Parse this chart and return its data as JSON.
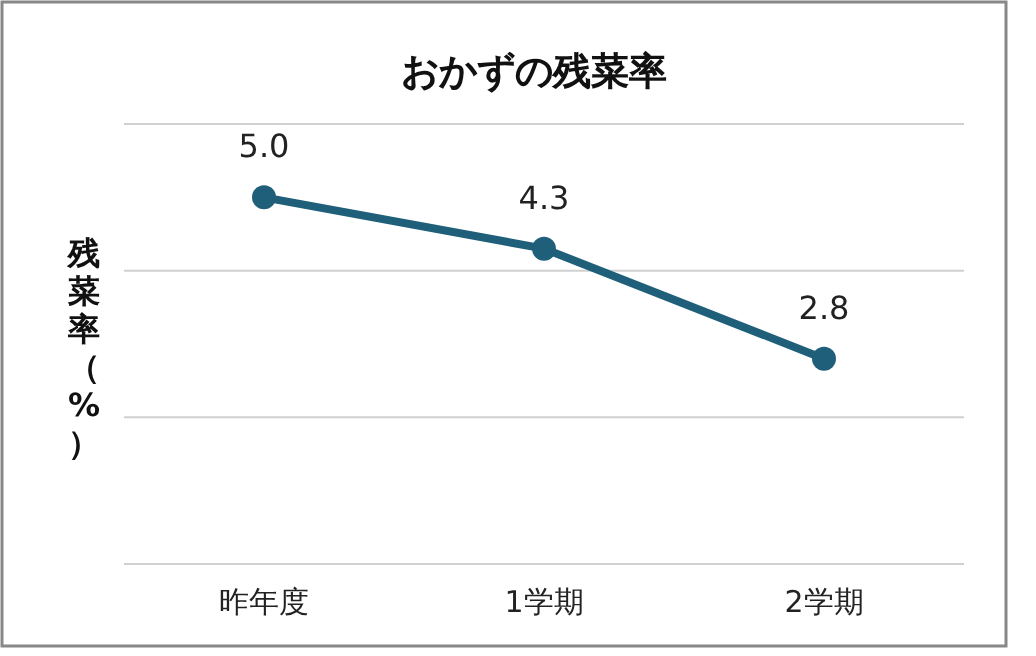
{
  "chart_data": {
    "type": "line",
    "title": "おかずの残菜率",
    "ylabel": "残菜率（%）",
    "categories": [
      "昨年度",
      "1学期",
      "2学期"
    ],
    "series": [
      {
        "color": "#1f5f7a",
        "values": [
          5.0,
          4.3,
          2.8
        ],
        "value_labels": [
          "5.0",
          "4.3",
          "2.8"
        ]
      }
    ],
    "ylim": [
      0,
      6
    ],
    "yticks": [
      {
        "value": 0,
        "label": null
      },
      {
        "value": 2,
        "label": null
      },
      {
        "value": 4,
        "label": null
      },
      {
        "value": 6,
        "label": null
      }
    ],
    "tick_labels": "x",
    "grid": "y",
    "marker": "circle",
    "line_style": "solid"
  }
}
